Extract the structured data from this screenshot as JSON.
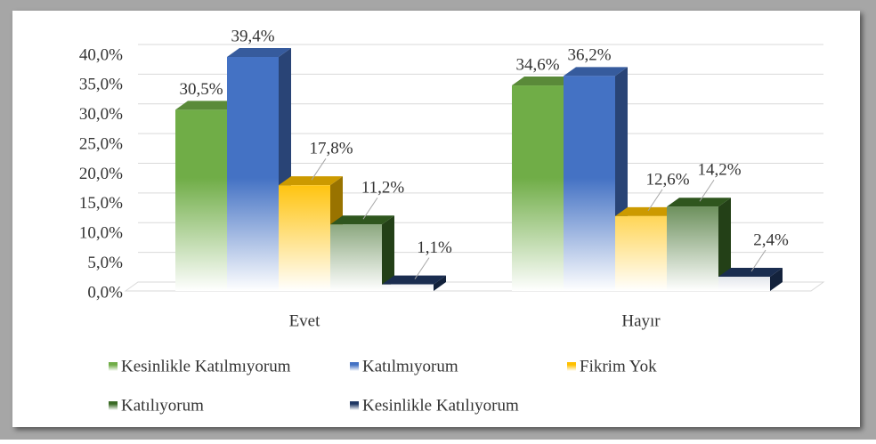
{
  "chart_data": {
    "type": "bar3d",
    "categories": [
      "Evet",
      "Hayır"
    ],
    "series": [
      {
        "name": "Kesinlikle Katılmıyorum",
        "color": "#70ad47",
        "values": [
          30.5,
          34.6
        ],
        "value_labels": [
          "30,5%",
          "34,6%"
        ]
      },
      {
        "name": "Katılmıyorum",
        "color": "#4472c4",
        "values": [
          39.4,
          36.2
        ],
        "value_labels": [
          "39,4%",
          "36,2%"
        ]
      },
      {
        "name": "Fikrim Yok",
        "color": "#ffc000",
        "values": [
          17.8,
          12.6
        ],
        "value_labels": [
          "17,8%",
          "12,6%"
        ]
      },
      {
        "name": "Katılıyorum",
        "color": "#3b6b26",
        "values": [
          11.2,
          14.2
        ],
        "value_labels": [
          "11,2%",
          "14,2%"
        ]
      },
      {
        "name": "Kesinlikle Katılıyorum",
        "color": "#203864",
        "values": [
          1.1,
          2.4
        ],
        "value_labels": [
          "1,1%",
          "2,4%"
        ]
      }
    ],
    "ylim": [
      0,
      40
    ],
    "yticks": [
      {
        "value": 0,
        "label": "0,0%"
      },
      {
        "value": 5,
        "label": "5,0%"
      },
      {
        "value": 10,
        "label": "10,0%"
      },
      {
        "value": 15,
        "label": "15,0%"
      },
      {
        "value": 20,
        "label": "20,0%"
      },
      {
        "value": 25,
        "label": "25,0%"
      },
      {
        "value": 30,
        "label": "30,0%"
      },
      {
        "value": 35,
        "label": "35,0%"
      },
      {
        "value": 40,
        "label": "40,0%"
      }
    ],
    "grid": true
  }
}
